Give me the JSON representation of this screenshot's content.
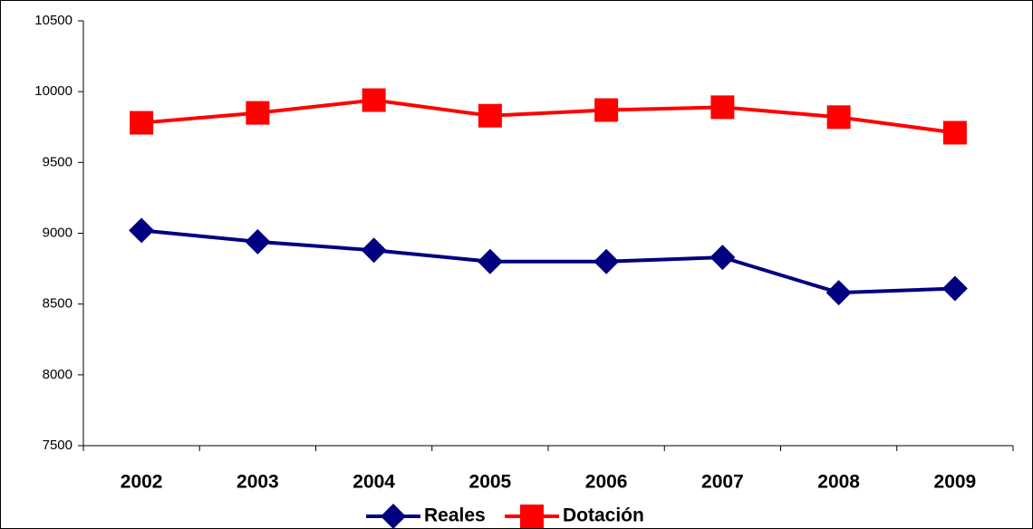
{
  "chart_data": {
    "type": "line",
    "categories": [
      "2002",
      "2003",
      "2004",
      "2005",
      "2006",
      "2007",
      "2008",
      "2009"
    ],
    "series": [
      {
        "name": "Reales",
        "color": "#000080",
        "marker": "diamond",
        "values": [
          9020,
          8940,
          8880,
          8800,
          8800,
          8830,
          8580,
          8610
        ]
      },
      {
        "name": "Dotación",
        "color": "#ff0000",
        "marker": "square",
        "values": [
          9780,
          9850,
          9940,
          9830,
          9870,
          9890,
          9820,
          9710
        ]
      }
    ],
    "ylim": [
      7500,
      10500
    ],
    "yticks": [
      7500,
      8000,
      8500,
      9000,
      9500,
      10000,
      10500
    ],
    "grid": false,
    "legend": "bottom"
  }
}
